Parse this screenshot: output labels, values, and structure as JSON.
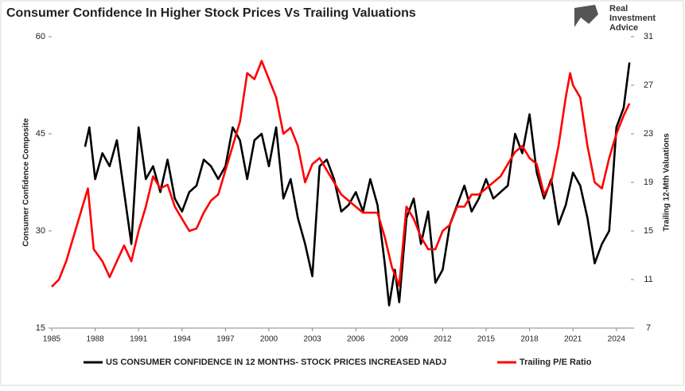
{
  "logo": [
    "Real",
    "Investment",
    "Advice"
  ],
  "chart_data": {
    "type": "line",
    "title": "Consumer Confidence In Higher Stock Prices Vs Trailing Valuations",
    "ylabel": "Consumer Confidence Composite",
    "y2label": "Trailing 12-Mth Valuations",
    "xlim": [
      1985,
      2025
    ],
    "xticks": [
      1985,
      1988,
      1991,
      1994,
      1997,
      2000,
      2003,
      2006,
      2009,
      2012,
      2015,
      2018,
      2021,
      2024
    ],
    "ylim": [
      15,
      60
    ],
    "yticks": [
      15,
      30,
      45,
      60
    ],
    "y2lim": [
      7,
      31
    ],
    "y2ticks": [
      7,
      11,
      15,
      19,
      23,
      27,
      31
    ],
    "legend": "bottom",
    "series": [
      {
        "name": "US CONSUMER CONFIDENCE IN 12 MONTHS- STOCK PRICES INCREASED NADJ",
        "color": "#000000",
        "axis": "y",
        "x": [
          1987.3,
          1987.6,
          1988,
          1988.5,
          1989,
          1989.5,
          1990,
          1990.5,
          1991,
          1991.5,
          1992,
          1992.5,
          1993,
          1993.5,
          1994,
          1994.5,
          1995,
          1995.5,
          1996,
          1996.5,
          1997,
          1997.5,
          1998,
          1998.5,
          1999,
          1999.5,
          2000,
          2000.5,
          2001,
          2001.5,
          2002,
          2002.5,
          2003,
          2003.5,
          2004,
          2004.5,
          2005,
          2005.5,
          2006,
          2006.5,
          2007,
          2007.5,
          2008,
          2008.3,
          2008.7,
          2009,
          2009.5,
          2010,
          2010.5,
          2011,
          2011.5,
          2012,
          2012.5,
          2013,
          2013.5,
          2014,
          2014.5,
          2015,
          2015.5,
          2016,
          2016.5,
          2017,
          2017.5,
          2018,
          2018.5,
          2019,
          2019.5,
          2020,
          2020.5,
          2021,
          2021.5,
          2022,
          2022.5,
          2023,
          2023.5,
          2024,
          2024.5,
          2024.9
        ],
        "values": [
          43,
          46,
          38,
          42,
          40,
          44,
          36,
          28,
          46,
          38,
          40,
          36,
          41,
          35,
          33,
          36,
          37,
          41,
          40,
          38,
          40,
          46,
          44,
          38,
          44,
          45,
          40,
          46,
          35,
          38,
          32,
          28,
          23,
          40,
          41,
          38,
          33,
          34,
          36,
          33,
          38,
          34,
          25,
          18.5,
          24,
          19,
          32,
          35,
          28,
          33,
          22,
          24,
          31,
          34,
          37,
          33,
          35,
          38,
          35,
          36,
          37,
          45,
          42,
          48,
          39,
          35,
          38,
          31,
          34,
          39,
          37,
          32,
          25,
          28,
          30,
          46,
          49,
          56
        ]
      },
      {
        "name": "Trailing P/E Ratio",
        "color": "#ff0000",
        "axis": "y2",
        "x": [
          1985,
          1985.5,
          1986,
          1986.5,
          1987,
          1987.5,
          1987.9,
          1988.5,
          1989,
          1989.5,
          1990,
          1990.5,
          1991,
          1991.5,
          1992,
          1992.5,
          1993,
          1993.5,
          1994,
          1994.5,
          1995,
          1995.5,
          1996,
          1996.5,
          1997,
          1997.5,
          1998,
          1998.5,
          1999,
          1999.5,
          2000,
          2000.5,
          2001,
          2001.5,
          2002,
          2002.5,
          2003,
          2003.5,
          2004,
          2004.5,
          2005,
          2005.5,
          2006,
          2006.5,
          2007,
          2007.5,
          2008,
          2008.5,
          2009,
          2009.5,
          2010,
          2010.5,
          2011,
          2011.5,
          2012,
          2012.5,
          2013,
          2013.5,
          2014,
          2014.5,
          2015,
          2015.5,
          2016,
          2016.5,
          2017,
          2017.5,
          2018,
          2018.5,
          2019,
          2019.5,
          2020,
          2020.5,
          2020.8,
          2021,
          2021.5,
          2022,
          2022.5,
          2023,
          2023.5,
          2024,
          2024.5,
          2024.9
        ],
        "values": [
          10.4,
          11,
          12.5,
          14.5,
          16.5,
          18.5,
          13.5,
          12.5,
          11.2,
          12.5,
          13.8,
          12.5,
          15,
          17,
          19.5,
          18.5,
          18.8,
          17,
          16,
          15,
          15.2,
          16.5,
          17.5,
          18,
          20,
          22,
          24,
          28,
          27.5,
          29,
          27.5,
          26,
          23,
          23.5,
          22,
          19,
          20.5,
          21,
          20,
          19,
          18,
          17.5,
          17,
          16.5,
          16.5,
          16.5,
          14.5,
          12,
          10.5,
          17,
          16,
          14.5,
          13.5,
          13.5,
          15,
          15.5,
          17,
          17,
          18,
          18,
          18.5,
          19,
          19.5,
          20.5,
          21.5,
          22,
          21,
          20.5,
          18,
          19,
          22,
          26,
          28,
          27,
          26,
          22,
          19,
          18.5,
          21,
          23,
          24.5,
          25.5
        ]
      }
    ]
  }
}
